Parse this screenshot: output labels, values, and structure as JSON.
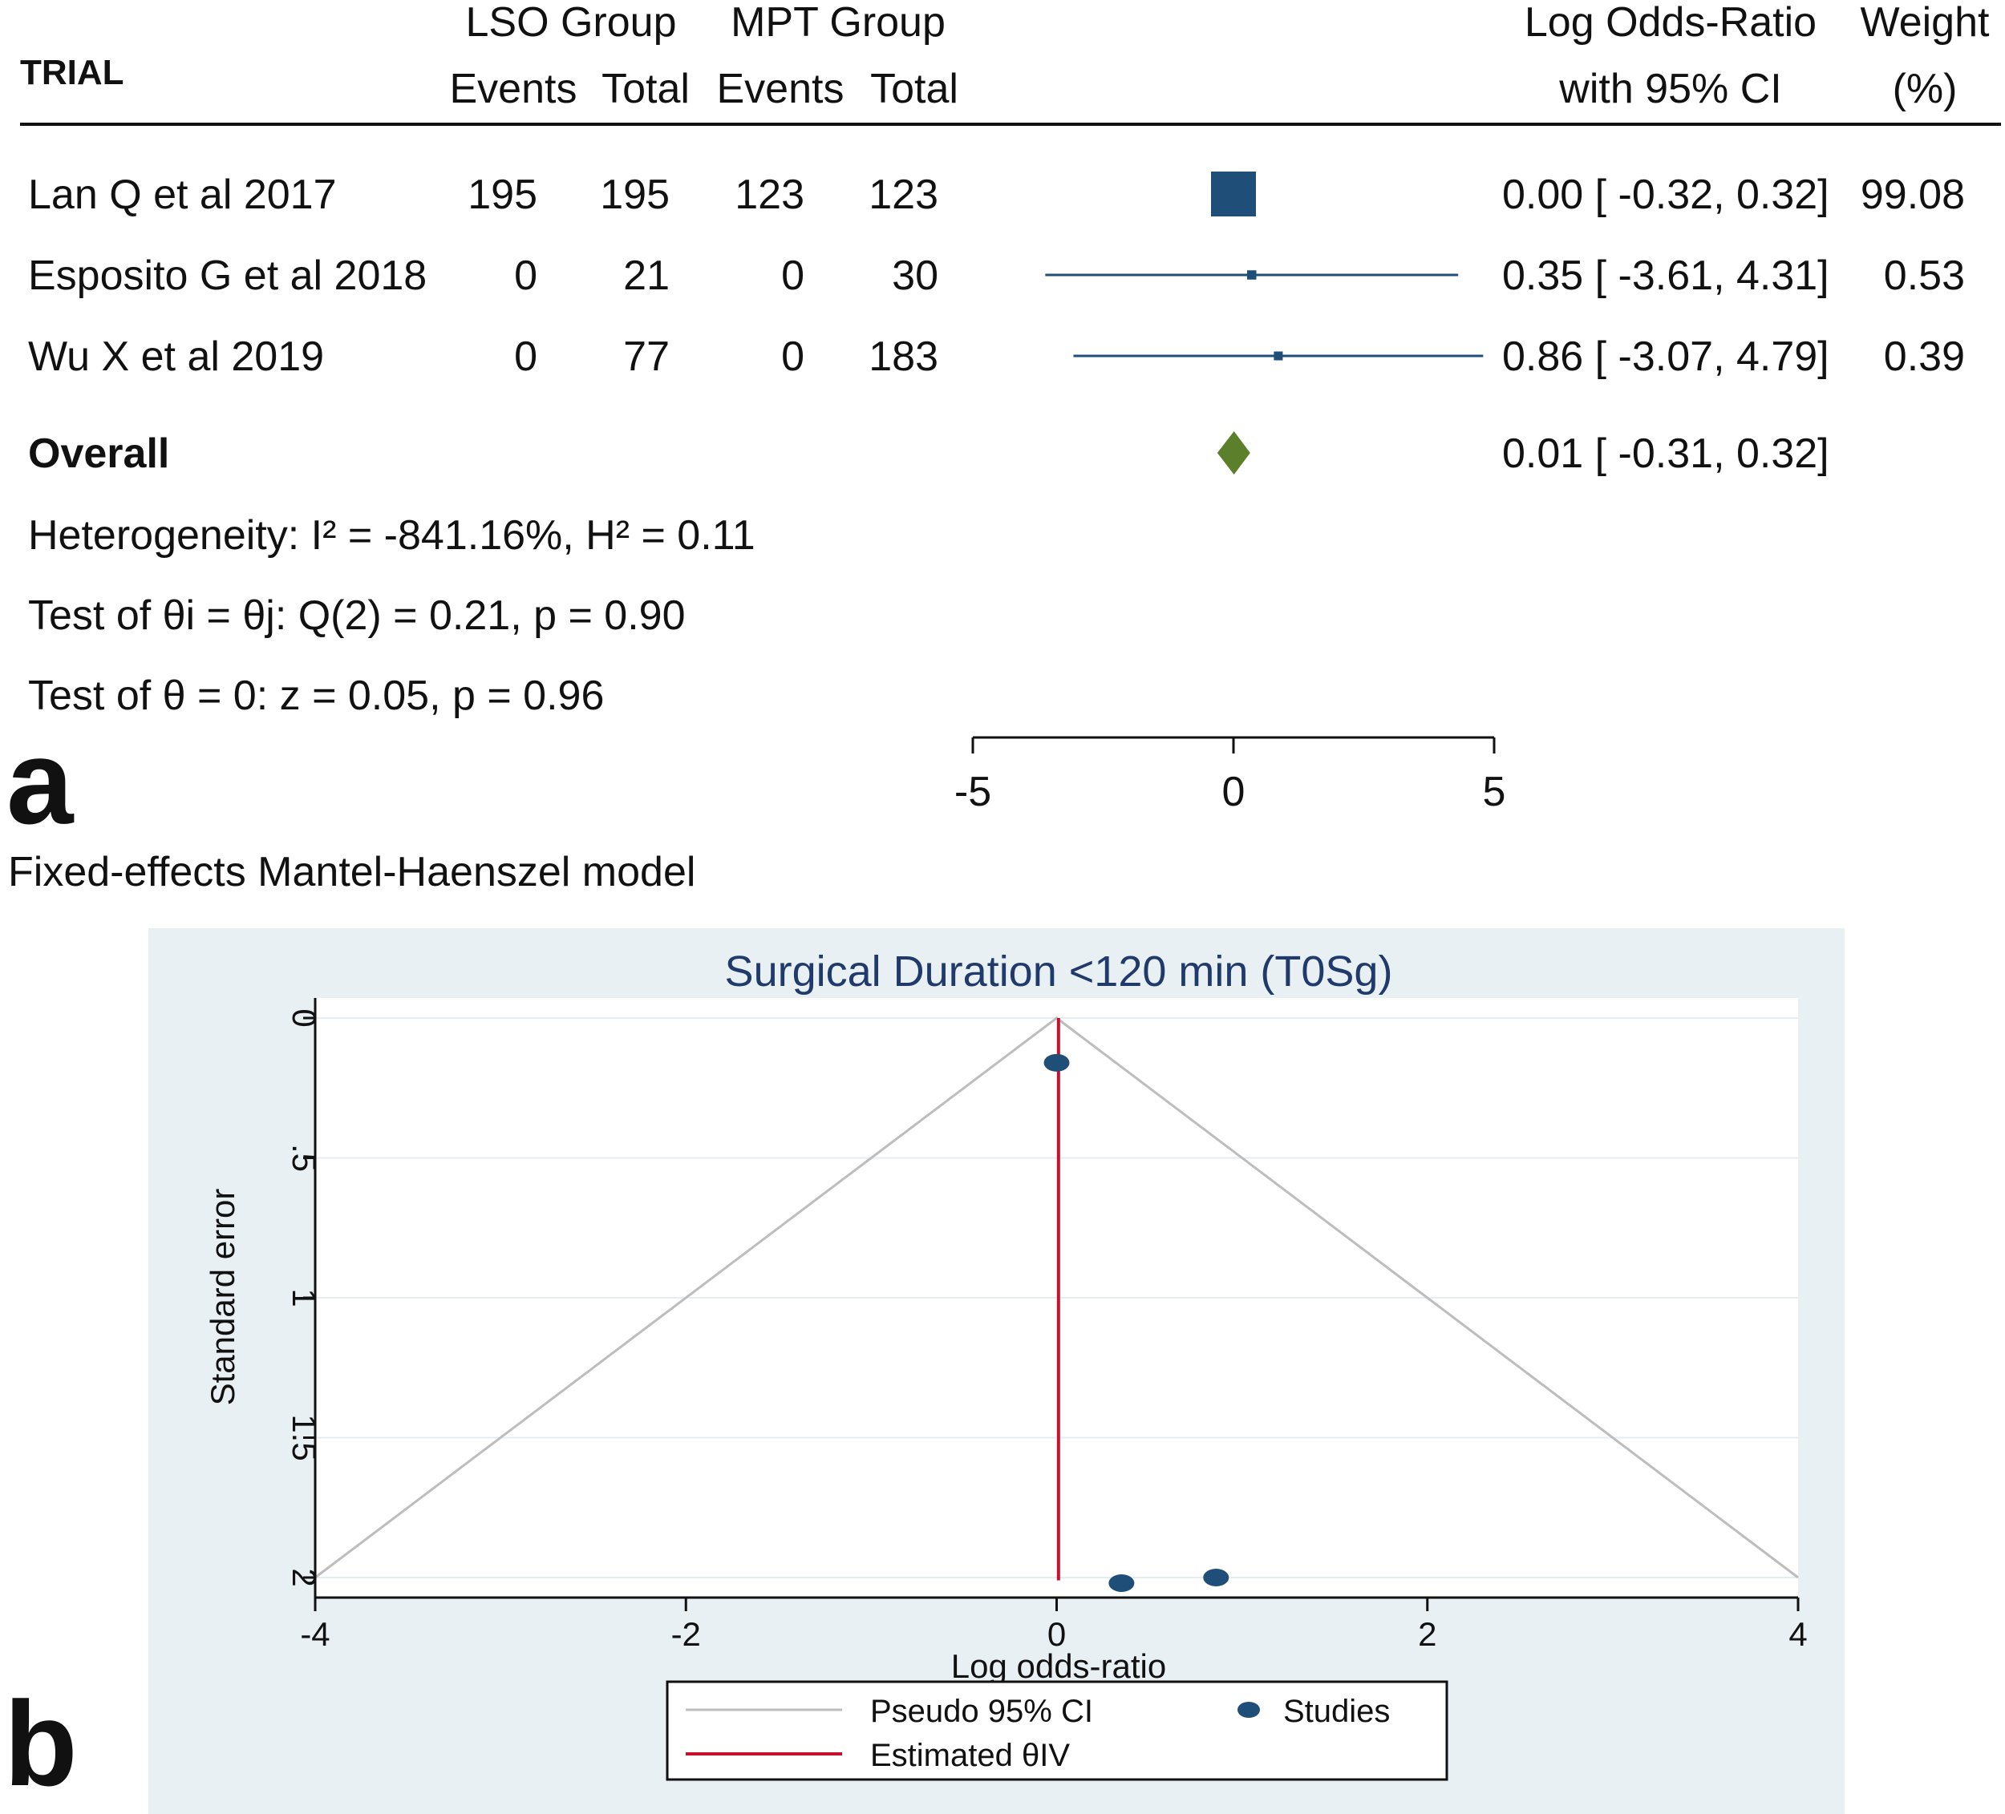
{
  "panel_a": {
    "letter": "a",
    "headers": {
      "trial": "TRIAL",
      "lso_group": "LSO Group",
      "mpt_group": "MPT Group",
      "events": "Events",
      "total": "Total",
      "effect_line1": "Log Odds-Ratio",
      "effect_line2": "with 95% CI",
      "weight_line1": "Weight",
      "weight_line2": "(%)"
    },
    "model_note": "Fixed-effects Mantel-Haenszel model",
    "stats": {
      "heterogeneity": "Heterogeneity: I² = -841.16%, H² = 0.11",
      "test_equal": "Test of θi = θj: Q(2) = 0.21, p = 0.90",
      "test_zero": "Test of θ = 0: z = 0.05, p = 0.96"
    }
  },
  "panel_b": {
    "letter": "b"
  },
  "colors": {
    "marker": "#1f4e79",
    "diamond": "#5b7f2b",
    "estimate_line": "#c8102e",
    "pseudo_ci": "#bdbdbd",
    "plot_bg": "#e9f0f4",
    "title": "#1f3a6b"
  },
  "chart_data": [
    {
      "type": "forest",
      "columns": [
        "TRIAL",
        "LSO Group Events",
        "LSO Group Total",
        "MPT Group Events",
        "MPT Group Total",
        "Log Odds-Ratio with 95% CI",
        "Weight (%)"
      ],
      "studies": [
        {
          "label": "Lan Q et al 2017",
          "lso_events": "195",
          "lso_total": "195",
          "mpt_events": "123",
          "mpt_total": "123",
          "estimate": 0.0,
          "lower": -0.32,
          "upper": 0.32,
          "ci_text": "0.00 [  -0.32,  0.32]",
          "weight": 99.08,
          "weight_text": "99.08"
        },
        {
          "label": "Esposito G et al 2018",
          "lso_events": "0",
          "lso_total": "21",
          "mpt_events": "0",
          "mpt_total": "30",
          "estimate": 0.35,
          "lower": -3.61,
          "upper": 4.31,
          "ci_text": "0.35 [  -3.61,  4.31]",
          "weight": 0.53,
          "weight_text": "0.53"
        },
        {
          "label": "Wu X et al 2019",
          "lso_events": "0",
          "lso_total": "77",
          "mpt_events": "0",
          "mpt_total": "183",
          "estimate": 0.86,
          "lower": -3.07,
          "upper": 4.79,
          "ci_text": "0.86 [  -3.07,  4.79]",
          "weight": 0.39,
          "weight_text": "0.39"
        }
      ],
      "overall": {
        "label": "Overall",
        "estimate": 0.01,
        "lower": -0.31,
        "upper": 0.32,
        "ci_text": "0.01 [  -0.31,  0.32]"
      },
      "xlim": [
        -5,
        5
      ],
      "xticks": [
        "-5",
        "0",
        "5"
      ],
      "xticks_values": [
        -5,
        0,
        5
      ]
    },
    {
      "type": "scatter",
      "title": "Surgical Duration <120 min (T0Sg)",
      "xlabel": "Log odds-ratio",
      "ylabel": "Standard error",
      "xlim": [
        -4,
        4
      ],
      "ylim": [
        2,
        0
      ],
      "xticks": [
        -4,
        -2,
        0,
        2,
        4
      ],
      "xtick_labels": [
        "-4",
        "-2",
        "0",
        "2",
        "4"
      ],
      "yticks": [
        0,
        0.5,
        1,
        1.5,
        2
      ],
      "ytick_labels": [
        "0",
        ".5",
        "1",
        "1.5",
        "2"
      ],
      "grid": true,
      "points": [
        {
          "x": 0.0,
          "y": 0.16
        },
        {
          "x": 0.35,
          "y": 2.02
        },
        {
          "x": 0.86,
          "y": 2.0
        }
      ],
      "estimate_line_x": 0.01,
      "pseudo_ci": {
        "apex": [
          0,
          0
        ],
        "left": [
          -4,
          2
        ],
        "right": [
          4,
          2
        ]
      },
      "legend": {
        "placement": "bottom",
        "entries": [
          {
            "label": "Pseudo 95% CI",
            "kind": "line",
            "color": "#bdbdbd"
          },
          {
            "label": "Studies",
            "kind": "marker",
            "color": "#1f4e79"
          },
          {
            "label": "Estimated θIV",
            "kind": "line",
            "color": "#c8102e"
          }
        ]
      }
    }
  ]
}
